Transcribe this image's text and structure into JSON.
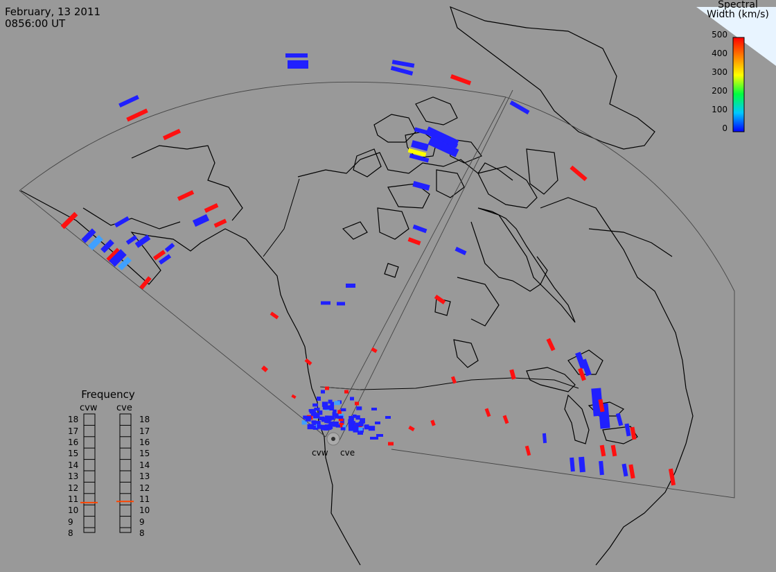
{
  "header": {
    "date": "February, 13 2011",
    "time": "0856:00 UT"
  },
  "colorbar": {
    "title_line1": "Spectral",
    "title_line2": "Width (km/s)",
    "ticks": [
      "500",
      "400",
      "300",
      "200",
      "100",
      "0"
    ],
    "range": [
      0,
      500
    ]
  },
  "frequency": {
    "title": "Frequency",
    "radars": [
      {
        "name": "cvw",
        "value": 10.7
      },
      {
        "name": "cve",
        "value": 10.8
      }
    ],
    "scale": [
      "18",
      "17",
      "16",
      "15",
      "14",
      "13",
      "12",
      "11",
      "10",
      "9",
      "8"
    ]
  },
  "sites": [
    {
      "name": "cvw"
    },
    {
      "name": "cve"
    }
  ],
  "colors": {
    "background": "#999999",
    "low": "#2020ff",
    "high": "#ff1010",
    "mid": "#3fa0ff",
    "yellow": "#ffff00",
    "marker": "#ff4500"
  }
}
